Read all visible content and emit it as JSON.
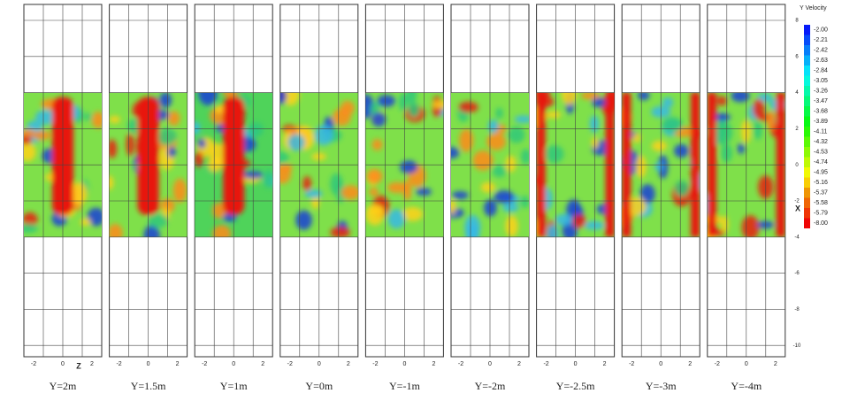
{
  "figure": {
    "panels": [
      "Y=2m",
      "Y=1.5m",
      "Y=1m",
      "Y=0m",
      "Y=-1m",
      "Y=-2m",
      "Y=-2.5m",
      "Y=-3m",
      "Y=-4m"
    ],
    "z_ticks": [
      "-2",
      "0",
      "2"
    ],
    "z_label": "Z",
    "x_label": "X",
    "x_ticks": [
      "8",
      "6",
      "4",
      "2",
      "0",
      "-2",
      "-4",
      "-6",
      "-8",
      "-10"
    ]
  },
  "colorbar": {
    "title": "Y Velocity",
    "labels": [
      "-2.00",
      "-2.21",
      "-2.42",
      "-2.63",
      "-2.84",
      "-3.05",
      "-3.26",
      "-3.47",
      "-3.68",
      "-3.89",
      "-4.11",
      "-4.32",
      "-4.53",
      "-4.74",
      "-4.95",
      "-5.16",
      "-5.37",
      "-5.58",
      "-5.79",
      "-8.00"
    ]
  }
}
